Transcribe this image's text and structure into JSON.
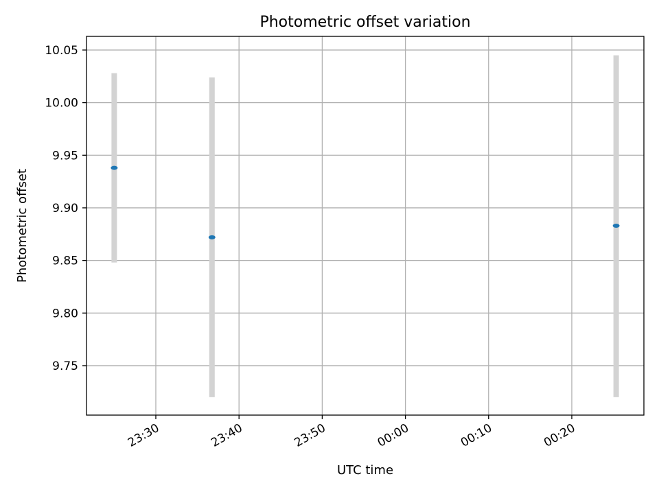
{
  "chart_data": {
    "type": "scatter",
    "title": "Photometric offset variation",
    "xlabel": "UTC time",
    "ylabel": "Photometric offset",
    "grid": true,
    "x_ticks": [
      "23:30",
      "23:40",
      "23:50",
      "00:00",
      "00:10",
      "00:20"
    ],
    "y_ticks": [
      "9.75",
      "9.80",
      "9.85",
      "9.90",
      "9.95",
      "10.00",
      "10.05"
    ],
    "y_tick_values": [
      9.75,
      9.8,
      9.85,
      9.9,
      9.95,
      10.0,
      10.05
    ],
    "ylim": [
      9.703,
      10.063
    ],
    "xlim": [
      "23:21:40",
      "00:28:40"
    ],
    "points": [
      {
        "x": "23:25:00",
        "y": 9.938,
        "err_low": 9.848,
        "err_high": 10.028
      },
      {
        "x": "23:36:45",
        "y": 9.872,
        "err_low": 9.72,
        "err_high": 10.024
      },
      {
        "x": "00:25:20",
        "y": 9.883,
        "err_low": 9.72,
        "err_high": 10.045
      }
    ],
    "marker_color": "#1f77b4",
    "errorbar_color": "#d3d3d3"
  }
}
